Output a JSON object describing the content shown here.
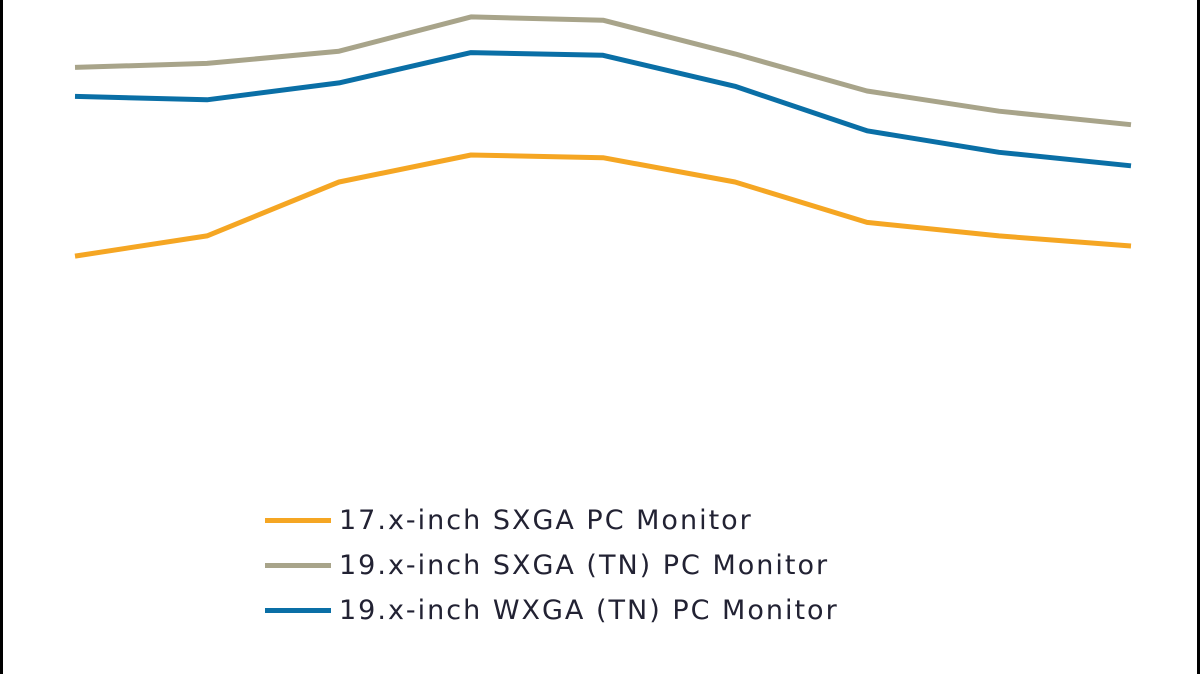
{
  "chart_data": {
    "type": "line",
    "title": "",
    "xlabel": "",
    "ylabel": "",
    "x": [
      1,
      2,
      3,
      4,
      5,
      6,
      7,
      8,
      9
    ],
    "ylim": [
      0,
      100
    ],
    "grid": false,
    "legend_position": "bottom-center",
    "series": [
      {
        "name": "17.x-inch SXGA PC Monitor",
        "color": "#F5A623",
        "values": [
          62,
          65,
          73,
          77,
          76.6,
          73,
          67,
          65,
          63.5
        ]
      },
      {
        "name": "19.x-inch SXGA (TN) PC Monitor",
        "color": "#A8A48A",
        "values": [
          90,
          90.6,
          92.4,
          97.5,
          97,
          92,
          86.5,
          83.5,
          81.5
        ]
      },
      {
        "name": "19.x-inch WXGA (TN) PC Monitor",
        "color": "#0A6FA6",
        "values": [
          85.7,
          85.2,
          87.7,
          92.2,
          91.8,
          87.2,
          80.6,
          77.4,
          75.4
        ]
      }
    ]
  }
}
